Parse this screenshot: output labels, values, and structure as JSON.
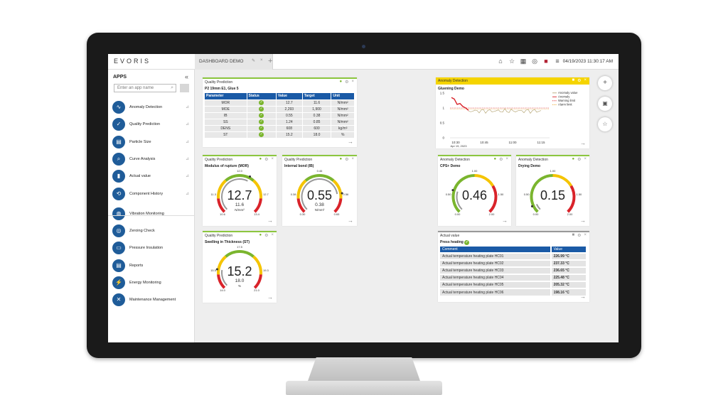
{
  "brand": "EVORIS",
  "tab": {
    "label": "DASHBOARD DEMO"
  },
  "topbar": {
    "datetime": "04/19/2023 11:30:17 AM",
    "icons": [
      "home-icon",
      "star-icon",
      "grid-icon",
      "user-icon",
      "flag-icon",
      "menu-icon"
    ]
  },
  "sidebar": {
    "title": "APPS",
    "search_placeholder": "Enter an app name",
    "items": [
      {
        "label": "Anomaly Detection",
        "icon": "anomaly-icon"
      },
      {
        "label": "Quality Prediction",
        "icon": "quality-icon"
      },
      {
        "label": "Particle Size",
        "icon": "particle-icon"
      },
      {
        "label": "Curve Analysis",
        "icon": "curve-icon"
      },
      {
        "label": "Actual value",
        "icon": "actual-icon"
      },
      {
        "label": "Component History",
        "icon": "history-icon"
      },
      {
        "label": "Vibration Monitoring",
        "icon": "vibration-icon"
      },
      {
        "label": "Zeroing Check",
        "icon": "zeroing-icon"
      },
      {
        "label": "Pressure Insulation",
        "icon": "pressure-icon"
      },
      {
        "label": "Reports",
        "icon": "reports-icon"
      },
      {
        "label": "Energy Monitoring",
        "icon": "energy-icon"
      },
      {
        "label": "Maintenance Management",
        "icon": "maintenance-icon"
      }
    ]
  },
  "qp_table": {
    "header": "Quality Prediction",
    "subtitle": "P2 19mm E1, Glue 5",
    "columns": [
      "Parameter",
      "Status",
      "Value",
      "Target",
      "Unit"
    ],
    "rows": [
      {
        "param": "MOR",
        "value": "12.7",
        "target": "11.6",
        "unit": "N/mm²"
      },
      {
        "param": "MOE",
        "value": "2,293",
        "target": "1,900",
        "unit": "N/mm²"
      },
      {
        "param": "IB",
        "value": "0.55",
        "target": "0.38",
        "unit": "N/mm²"
      },
      {
        "param": "SS",
        "value": "1.24",
        "target": "0.85",
        "unit": "N/mm²"
      },
      {
        "param": "DENS",
        "value": "608",
        "target": "600",
        "unit": "kg/m³"
      },
      {
        "param": "ST",
        "value": "15.2",
        "target": "18.0",
        "unit": "%"
      }
    ]
  },
  "gauges": [
    {
      "header": "Quality Prediction",
      "title": "Modulus of rupture (MOR)",
      "value": "12.7",
      "target": "11.6",
      "unit": "N/mm²",
      "t_top": "12.0",
      "t_left": "11.3",
      "t_right": "12.7",
      "t_bl": "10.6",
      "t_br": "13.4",
      "fill": 0.6
    },
    {
      "header": "Quality Prediction",
      "title": "Internal bond (IB)",
      "value": "0.55",
      "target": "0.38",
      "unit": "N/mm²",
      "t_top": "0.46",
      "t_left": "0.38",
      "t_right": "0.56",
      "t_bl": "0.30",
      "t_br": "0.65",
      "fill": 0.8
    },
    {
      "header": "Quality Prediction",
      "title": "Swelling in Thickness (ST)",
      "value": "15.2",
      "target": "18.0",
      "unit": "%",
      "t_top": "17.5",
      "t_left": "15.5",
      "t_right": "19.3",
      "t_bl": "14.0",
      "t_br": "21.0",
      "fill": 0.2
    },
    {
      "header": "Anomaly Detection",
      "title": "CPS+ Demo",
      "value": "0.46",
      "target": "",
      "unit": "",
      "t_top": "1.00",
      "t_left": "0.50",
      "t_right": "1.50",
      "t_bl": "0.00",
      "t_br": "2.00",
      "fill": 0.23
    },
    {
      "header": "Anomaly Detection",
      "title": "Drying Demo",
      "value": "0.15",
      "target": "",
      "unit": "",
      "t_top": "1.00",
      "t_left": "0.50",
      "t_right": "1.50",
      "t_bl": "0.00",
      "t_br": "2.00",
      "fill": 0.075
    }
  ],
  "anomaly_chart": {
    "header": "Anomaly Detection",
    "subtitle": "Gluening Demo",
    "legend": [
      "Anomaly value",
      "Anomaly",
      "Warning limit",
      "Alarm limit"
    ],
    "x_ticks": [
      "10:30",
      "10:45",
      "11:00",
      "11:15"
    ],
    "x_sub": "Apr 19, 2023",
    "y_ticks": [
      "1.5",
      "1",
      "0.5",
      "0"
    ],
    "warning": 1.0,
    "alarm": 0.97,
    "colors": {
      "value": "#b8a878",
      "anomaly": "#d9232a",
      "warning": "#d9232a",
      "alarm": "#e8a020"
    }
  },
  "actual_value": {
    "header": "Actual value",
    "subtitle": "Press heating",
    "columns": [
      "Comment",
      "Value"
    ],
    "rows": [
      {
        "comment": "Actual temperature heating plate HC01",
        "value": "226.99 °C"
      },
      {
        "comment": "Actual temperature heating plate HC02",
        "value": "237.33 °C"
      },
      {
        "comment": "Actual temperature heating plate HC03",
        "value": "236.65 °C"
      },
      {
        "comment": "Actual temperature heating plate HC04",
        "value": "225.48 °C"
      },
      {
        "comment": "Actual temperature heating plate HC05",
        "value": "205.32 °C"
      },
      {
        "comment": "Actual temperature heating plate HC06",
        "value": "198.16 °C"
      }
    ]
  }
}
